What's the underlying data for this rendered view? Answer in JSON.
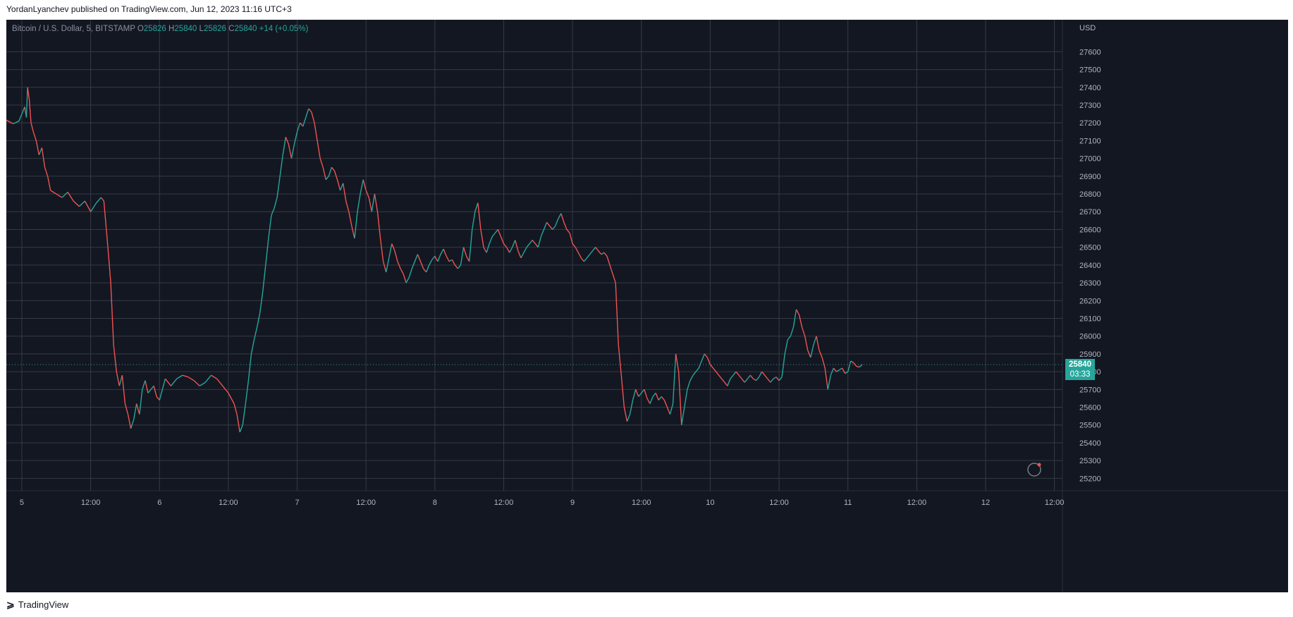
{
  "header": {
    "published_line": "YordanLyanchev published on TradingView.com, Jun 12, 2023 11:16 UTC+3"
  },
  "legend": {
    "symbol": "Bitcoin / U.S. Dollar, 5, BITSTAMP",
    "open_label": "O",
    "open": "25826",
    "high_label": "H",
    "high": "25840",
    "low_label": "L",
    "low": "25826",
    "close_label": "C",
    "close": "25840",
    "change": "+14 (+0.05%)"
  },
  "price_badge": {
    "price": "25840",
    "countdown": "03:33"
  },
  "footer": {
    "brand": "TradingView"
  },
  "colors": {
    "background": "#131722",
    "grid": "#363a45",
    "up": "#26a69a",
    "down": "#ef5350",
    "axis_text": "#b2b5be"
  },
  "chart_data": {
    "type": "line",
    "title": "Bitcoin / U.S. Dollar, 5, BITSTAMP",
    "y_axis_unit": "USD",
    "ylim": [
      25130,
      27780
    ],
    "y_ticks": [
      25200,
      25300,
      25400,
      25500,
      25600,
      25700,
      25800,
      25900,
      26000,
      26100,
      26200,
      26300,
      26400,
      26500,
      26600,
      26700,
      26800,
      26900,
      27000,
      27100,
      27200,
      27300,
      27400,
      27500,
      27600
    ],
    "x_tick_labels": [
      "5",
      "12:00",
      "6",
      "12:00",
      "7",
      "12:00",
      "8",
      "12:00",
      "9",
      "12:00",
      "10",
      "12:00",
      "11",
      "12:00",
      "12",
      "12:00"
    ],
    "x_tick_hours": [
      0,
      12,
      24,
      36,
      48,
      60,
      72,
      84,
      96,
      108,
      120,
      132,
      144,
      156,
      168,
      180
    ],
    "xlim_hours": [
      -2.7,
      181.4
    ],
    "grid": true,
    "last_price": 25840,
    "series": [
      {
        "values": [
          [
            -2.7,
            27215
          ],
          [
            -1.5,
            27195
          ],
          [
            -0.5,
            27210
          ],
          [
            0,
            27250
          ],
          [
            0.5,
            27290
          ],
          [
            0.8,
            27230
          ],
          [
            1.0,
            27400
          ],
          [
            1.3,
            27330
          ],
          [
            1.6,
            27200
          ],
          [
            2.0,
            27150
          ],
          [
            2.5,
            27100
          ],
          [
            3.0,
            27020
          ],
          [
            3.5,
            27060
          ],
          [
            4.0,
            26950
          ],
          [
            4.5,
            26900
          ],
          [
            5.0,
            26820
          ],
          [
            6.0,
            26800
          ],
          [
            7.0,
            26780
          ],
          [
            8.0,
            26810
          ],
          [
            9.0,
            26760
          ],
          [
            10.0,
            26730
          ],
          [
            11.0,
            26760
          ],
          [
            12.0,
            26700
          ],
          [
            13.0,
            26750
          ],
          [
            13.8,
            26780
          ],
          [
            14.3,
            26760
          ],
          [
            15.0,
            26500
          ],
          [
            15.5,
            26300
          ],
          [
            16.0,
            25950
          ],
          [
            16.5,
            25800
          ],
          [
            17.0,
            25720
          ],
          [
            17.5,
            25780
          ],
          [
            18.0,
            25620
          ],
          [
            18.5,
            25560
          ],
          [
            19.0,
            25480
          ],
          [
            19.5,
            25530
          ],
          [
            20.0,
            25620
          ],
          [
            20.5,
            25560
          ],
          [
            21.0,
            25700
          ],
          [
            21.5,
            25750
          ],
          [
            22.0,
            25680
          ],
          [
            22.5,
            25700
          ],
          [
            23.0,
            25720
          ],
          [
            23.5,
            25660
          ],
          [
            24.0,
            25640
          ],
          [
            24.5,
            25700
          ],
          [
            25.0,
            25760
          ],
          [
            26.0,
            25720
          ],
          [
            27.0,
            25760
          ],
          [
            28.0,
            25780
          ],
          [
            29.0,
            25770
          ],
          [
            30.0,
            25750
          ],
          [
            31.0,
            25720
          ],
          [
            32.0,
            25740
          ],
          [
            33.0,
            25780
          ],
          [
            34.0,
            25760
          ],
          [
            35.0,
            25720
          ],
          [
            36.0,
            25680
          ],
          [
            37.0,
            25620
          ],
          [
            37.5,
            25560
          ],
          [
            38.0,
            25460
          ],
          [
            38.5,
            25500
          ],
          [
            39.0,
            25620
          ],
          [
            39.5,
            25750
          ],
          [
            40.0,
            25900
          ],
          [
            40.5,
            25980
          ],
          [
            41.0,
            26050
          ],
          [
            41.5,
            26130
          ],
          [
            42.0,
            26250
          ],
          [
            42.5,
            26400
          ],
          [
            43.0,
            26550
          ],
          [
            43.5,
            26680
          ],
          [
            44.0,
            26720
          ],
          [
            44.5,
            26780
          ],
          [
            45.0,
            26900
          ],
          [
            45.5,
            27020
          ],
          [
            46.0,
            27120
          ],
          [
            46.5,
            27080
          ],
          [
            47.0,
            27000
          ],
          [
            47.5,
            27080
          ],
          [
            48.0,
            27150
          ],
          [
            48.5,
            27200
          ],
          [
            49.0,
            27180
          ],
          [
            49.5,
            27230
          ],
          [
            50.0,
            27280
          ],
          [
            50.5,
            27260
          ],
          [
            51.0,
            27200
          ],
          [
            51.5,
            27100
          ],
          [
            52.0,
            27000
          ],
          [
            52.5,
            26950
          ],
          [
            53.0,
            26880
          ],
          [
            53.5,
            26900
          ],
          [
            54.0,
            26950
          ],
          [
            54.5,
            26930
          ],
          [
            55.0,
            26880
          ],
          [
            55.5,
            26820
          ],
          [
            56.0,
            26860
          ],
          [
            56.5,
            26760
          ],
          [
            57.0,
            26700
          ],
          [
            57.5,
            26620
          ],
          [
            58.0,
            26550
          ],
          [
            58.5,
            26700
          ],
          [
            59.0,
            26800
          ],
          [
            59.5,
            26880
          ],
          [
            60.0,
            26820
          ],
          [
            60.5,
            26780
          ],
          [
            61.0,
            26700
          ],
          [
            61.5,
            26800
          ],
          [
            62.0,
            26700
          ],
          [
            62.5,
            26550
          ],
          [
            63.0,
            26420
          ],
          [
            63.5,
            26360
          ],
          [
            64.0,
            26440
          ],
          [
            64.5,
            26520
          ],
          [
            65.0,
            26480
          ],
          [
            65.5,
            26420
          ],
          [
            66.0,
            26380
          ],
          [
            66.5,
            26350
          ],
          [
            67.0,
            26300
          ],
          [
            67.5,
            26330
          ],
          [
            68.0,
            26380
          ],
          [
            68.5,
            26420
          ],
          [
            69.0,
            26460
          ],
          [
            69.5,
            26420
          ],
          [
            70.0,
            26380
          ],
          [
            70.5,
            26360
          ],
          [
            71.0,
            26400
          ],
          [
            71.5,
            26430
          ],
          [
            72.0,
            26450
          ],
          [
            72.5,
            26420
          ],
          [
            73.0,
            26460
          ],
          [
            73.5,
            26490
          ],
          [
            74.0,
            26450
          ],
          [
            74.5,
            26420
          ],
          [
            75.0,
            26430
          ],
          [
            75.5,
            26400
          ],
          [
            76.0,
            26380
          ],
          [
            76.5,
            26400
          ],
          [
            77.0,
            26500
          ],
          [
            77.5,
            26450
          ],
          [
            78.0,
            26420
          ],
          [
            78.5,
            26600
          ],
          [
            79.0,
            26700
          ],
          [
            79.5,
            26750
          ],
          [
            80.0,
            26600
          ],
          [
            80.5,
            26500
          ],
          [
            81.0,
            26470
          ],
          [
            81.5,
            26520
          ],
          [
            82.0,
            26560
          ],
          [
            82.5,
            26580
          ],
          [
            83.0,
            26600
          ],
          [
            83.5,
            26560
          ],
          [
            84.0,
            26520
          ],
          [
            84.5,
            26500
          ],
          [
            85.0,
            26470
          ],
          [
            85.5,
            26500
          ],
          [
            86.0,
            26540
          ],
          [
            86.5,
            26480
          ],
          [
            87.0,
            26440
          ],
          [
            87.5,
            26470
          ],
          [
            88.0,
            26500
          ],
          [
            88.5,
            26520
          ],
          [
            89.0,
            26540
          ],
          [
            89.5,
            26520
          ],
          [
            90.0,
            26500
          ],
          [
            90.5,
            26560
          ],
          [
            91.0,
            26600
          ],
          [
            91.5,
            26640
          ],
          [
            92.0,
            26620
          ],
          [
            92.5,
            26600
          ],
          [
            93.0,
            26620
          ],
          [
            93.5,
            26660
          ],
          [
            94.0,
            26690
          ],
          [
            94.5,
            26640
          ],
          [
            95.0,
            26600
          ],
          [
            95.5,
            26580
          ],
          [
            96.0,
            26520
          ],
          [
            96.5,
            26500
          ],
          [
            97.0,
            26470
          ],
          [
            97.5,
            26440
          ],
          [
            98.0,
            26420
          ],
          [
            98.5,
            26440
          ],
          [
            99.0,
            26460
          ],
          [
            99.5,
            26480
          ],
          [
            100.0,
            26500
          ],
          [
            100.5,
            26480
          ],
          [
            101.0,
            26460
          ],
          [
            101.5,
            26470
          ],
          [
            102.0,
            26450
          ],
          [
            102.5,
            26400
          ],
          [
            103.0,
            26350
          ],
          [
            103.5,
            26300
          ],
          [
            104.0,
            25950
          ],
          [
            104.5,
            25780
          ],
          [
            105.0,
            25600
          ],
          [
            105.5,
            25520
          ],
          [
            106.0,
            25560
          ],
          [
            106.5,
            25640
          ],
          [
            107.0,
            25700
          ],
          [
            107.5,
            25660
          ],
          [
            108.0,
            25680
          ],
          [
            108.5,
            25700
          ],
          [
            109.0,
            25650
          ],
          [
            109.5,
            25620
          ],
          [
            110.0,
            25660
          ],
          [
            110.5,
            25680
          ],
          [
            111.0,
            25640
          ],
          [
            111.5,
            25660
          ],
          [
            112.0,
            25640
          ],
          [
            112.5,
            25600
          ],
          [
            113.0,
            25560
          ],
          [
            113.5,
            25620
          ],
          [
            114.0,
            25900
          ],
          [
            114.5,
            25800
          ],
          [
            115.0,
            25500
          ],
          [
            115.5,
            25600
          ],
          [
            116.0,
            25700
          ],
          [
            116.5,
            25750
          ],
          [
            117.0,
            25780
          ],
          [
            117.5,
            25800
          ],
          [
            118.0,
            25820
          ],
          [
            118.5,
            25860
          ],
          [
            119.0,
            25900
          ],
          [
            119.5,
            25880
          ],
          [
            120.0,
            25840
          ],
          [
            120.5,
            25820
          ],
          [
            121.0,
            25800
          ],
          [
            121.5,
            25780
          ],
          [
            122.0,
            25760
          ],
          [
            122.5,
            25740
          ],
          [
            123.0,
            25720
          ],
          [
            123.5,
            25760
          ],
          [
            124.0,
            25780
          ],
          [
            124.5,
            25800
          ],
          [
            125.0,
            25780
          ],
          [
            125.5,
            25760
          ],
          [
            126.0,
            25740
          ],
          [
            126.5,
            25760
          ],
          [
            127.0,
            25780
          ],
          [
            127.5,
            25760
          ],
          [
            128.0,
            25750
          ],
          [
            128.5,
            25770
          ],
          [
            129.0,
            25800
          ],
          [
            129.5,
            25780
          ],
          [
            130.0,
            25760
          ],
          [
            130.5,
            25740
          ],
          [
            131.0,
            25760
          ],
          [
            131.5,
            25770
          ],
          [
            132.0,
            25750
          ],
          [
            132.5,
            25770
          ],
          [
            133.0,
            25900
          ],
          [
            133.5,
            25980
          ],
          [
            134.0,
            26000
          ],
          [
            134.5,
            26050
          ],
          [
            135.0,
            26150
          ],
          [
            135.5,
            26120
          ],
          [
            136.0,
            26050
          ],
          [
            136.5,
            26000
          ],
          [
            137.0,
            25920
          ],
          [
            137.5,
            25880
          ],
          [
            138.0,
            25950
          ],
          [
            138.5,
            26000
          ],
          [
            139.0,
            25920
          ],
          [
            139.5,
            25880
          ],
          [
            140.0,
            25820
          ],
          [
            140.5,
            25700
          ],
          [
            141.0,
            25780
          ],
          [
            141.5,
            25820
          ],
          [
            142.0,
            25800
          ],
          [
            142.5,
            25810
          ],
          [
            143.0,
            25820
          ],
          [
            143.5,
            25790
          ],
          [
            144.0,
            25800
          ],
          [
            144.5,
            25860
          ],
          [
            145.0,
            25850
          ],
          [
            145.5,
            25830
          ],
          [
            146.0,
            25826
          ],
          [
            146.5,
            25840
          ]
        ]
      }
    ]
  }
}
